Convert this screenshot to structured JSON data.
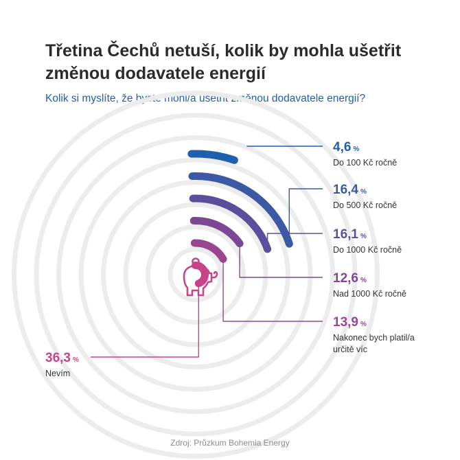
{
  "title": "Třetina Čechů netuší, kolik by mohla ušetřit změnou dodavatele energií",
  "subtitle": "Kolik si myslíte, že byste mohl/a ušetřit změnou dodavatele energií?",
  "source": "Zdroj: Průzkum Bohemia Energy",
  "icons": [
    "piggy-bank-icon"
  ],
  "chart_data": {
    "type": "radial-bar",
    "unit": "%",
    "items": [
      {
        "value_text": "4,6",
        "value": 4.6,
        "label": "Do 100 Kč ročně",
        "color": "#1f5fae"
      },
      {
        "value_text": "16,4",
        "value": 16.4,
        "label": "Do 500 Kč ročně",
        "color": "#3c59a6"
      },
      {
        "value_text": "16,1",
        "value": 16.1,
        "label": "Do 1000 Kč ročně",
        "color": "#5b4f9c"
      },
      {
        "value_text": "12,6",
        "value": 12.6,
        "label": "Nad 1000 Kč ročně",
        "color": "#7c4894"
      },
      {
        "value_text": "13,9",
        "value": 13.9,
        "label": "Nakonec bych platil/a určitě víc",
        "color": "#9a4590"
      },
      {
        "value_text": "36,3",
        "value": 36.3,
        "label": "Nevím",
        "color": "#c8438a"
      }
    ]
  }
}
